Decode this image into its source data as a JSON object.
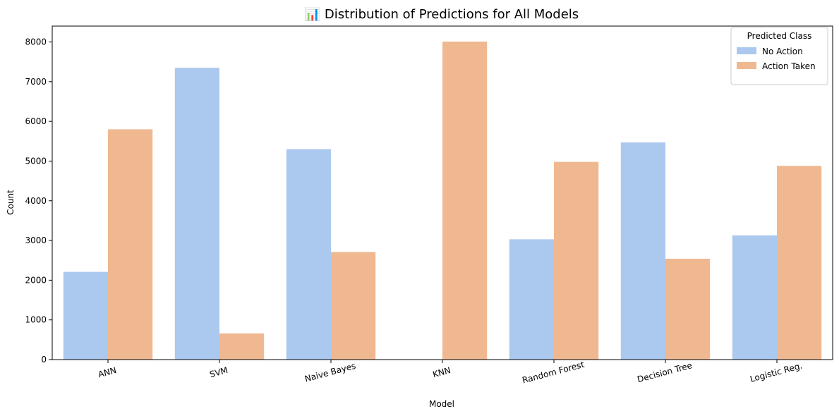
{
  "chart_data": {
    "type": "bar",
    "title": "📊 Distribution of Predictions for All Models",
    "xlabel": "Model",
    "ylabel": "Count",
    "categories": [
      "ANN",
      "SVM",
      "Naive Bayes",
      "KNN",
      "Random Forest",
      "Decision Tree",
      "Logistic Reg."
    ],
    "series": [
      {
        "name": "No Action",
        "color": "#abc9ef",
        "values": [
          2210,
          7350,
          5300,
          0,
          3030,
          5470,
          3130
        ]
      },
      {
        "name": "Action Taken",
        "color": "#f0b891",
        "values": [
          5800,
          660,
          2710,
          8010,
          4980,
          2540,
          4880
        ]
      }
    ],
    "ylim": [
      0,
      8400
    ],
    "yticks": [
      0,
      1000,
      2000,
      3000,
      4000,
      5000,
      6000,
      7000,
      8000
    ],
    "xtick_rotation_deg": 15,
    "grid": false,
    "legend": {
      "title": "Predicted Class",
      "placement": "top-right"
    }
  }
}
